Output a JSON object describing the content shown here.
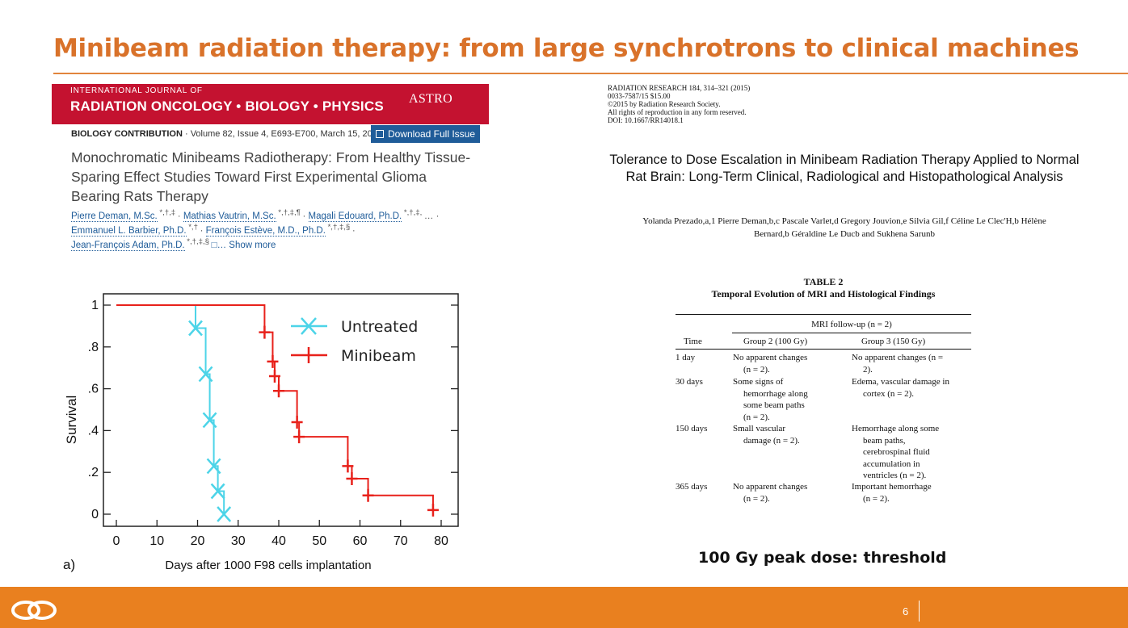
{
  "slide": {
    "title": "Minibeam radiation therapy: from large synchrotrons to clinical machines",
    "page_number": "6",
    "caption": "100 Gy peak dose: threshold",
    "colors": {
      "accent": "#E9801F",
      "title": "#D9722A",
      "journal_red": "#C41230",
      "link_blue": "#1F5C99",
      "untreated": "#4DD4E8",
      "minibeam": "#E8211B"
    }
  },
  "left_paper": {
    "journal_line1": "INTERNATIONAL JOURNAL OF",
    "journal_line2": "RADIATION ONCOLOGY • BIOLOGY • PHYSICS",
    "journal_astro": "ASTRO",
    "contribution_type": "BIOLOGY CONTRIBUTION",
    "contribution_details": " · Volume 82, Issue 4, E693-E700, March 15, 2012",
    "download_label": "Download Full Issue",
    "title": "Monochromatic Minibeams Radiotherapy: From Healthy Tissue-Sparing Effect Studies Toward First Experimental Glioma Bearing Rats Therapy",
    "authors": {
      "a1": "Pierre Deman, M.Sc.",
      "a1_sup": " *,†,‡ ",
      "a2": "Mathias Vautrin, M.Sc.",
      "a2_sup": " *,†,‡,¶ ",
      "a3": "Magali Edouard, Ph.D.",
      "a3_sup": " *,†,‡, ",
      "a3_tail": "… ·",
      "a4": "Emmanuel L. Barbier, Ph.D.",
      "a4_sup": " *,† ",
      "a5": "François Estève, M.D., Ph.D.",
      "a5_sup": " *,†,‡,§ ",
      "a5_tail": "·",
      "a6": "Jean-François Adam, Ph.D.",
      "a6_sup": " *,†,‡,§ ",
      "show_more": "□… Show more",
      "dot": "·"
    }
  },
  "right_paper": {
    "header_line1": "RADIATION RESEARCH 184, 314–321 (2015)",
    "header_line2": "0033-7587/15 $15.00",
    "header_line3": "©2015 by Radiation Research Society.",
    "header_line4": "All rights of reproduction in any form reserved.",
    "header_line5": "DOI: 10.1667/RR14018.1",
    "title": "Tolerance to Dose Escalation in Minibeam Radiation Therapy Applied to Normal Rat Brain: Long-Term Clinical, Radiological and Histopathological Analysis",
    "authors_line1": "Yolanda Prezado,a,1 Pierre Deman,b,c Pascale Varlet,d Gregory Jouvion,e Silvia Gil,f Céline Le Clec'H,b Hélène",
    "authors_line2": "Bernard,b Géraldine Le Ducb and Sukhena Sarunb"
  },
  "table2": {
    "label": "TABLE 2",
    "title": "Temporal Evolution of MRI and Histological Findings",
    "spanner": "MRI follow-up (n = 2)",
    "headers": [
      "Time",
      "Group 2 (100 Gy)",
      "Group 3 (150 Gy)"
    ],
    "rows": [
      {
        "time": "1 day",
        "g2": [
          "No apparent changes",
          "(n = 2)."
        ],
        "g3": [
          "No apparent changes (n =",
          "2)."
        ]
      },
      {
        "time": "30 days",
        "g2": [
          "Some signs of",
          "hemorrhage along",
          "some beam paths",
          "(n = 2)."
        ],
        "g3": [
          "Edema, vascular damage in",
          "cortex (n = 2)."
        ]
      },
      {
        "time": "150 days",
        "g2": [
          "Small vascular",
          "damage (n = 2)."
        ],
        "g3": [
          "Hemorrhage along some",
          "beam paths,",
          "cerebrospinal fluid",
          "accumulation in",
          "ventricles (n = 2)."
        ]
      },
      {
        "time": "365 days",
        "g2": [
          "No apparent changes",
          "(n = 2)."
        ],
        "g3": [
          "Important hemorrhage",
          "(n = 2)."
        ]
      }
    ]
  },
  "chart_data": {
    "type": "line",
    "panel_label": "a)",
    "xlabel": "Days after 1000 F98 cells implantation",
    "ylabel": "Survival",
    "xlim": [
      0,
      80
    ],
    "ylim": [
      0,
      1
    ],
    "x_ticks": [
      0,
      10,
      20,
      30,
      40,
      50,
      60,
      70,
      80
    ],
    "y_ticks": [
      0,
      0.2,
      0.4,
      0.6,
      0.8,
      1
    ],
    "y_tick_labels": [
      "0",
      ".2",
      ".4",
      ".6",
      ".8",
      "1"
    ],
    "legend_position": "top-right",
    "step": true,
    "series": [
      {
        "name": "Untreated",
        "color": "#4DD4E8",
        "marker": "x",
        "steps": [
          [
            0,
            1
          ],
          [
            19.5,
            0.89
          ],
          [
            22,
            0.67
          ],
          [
            23,
            0.45
          ],
          [
            24,
            0.23
          ],
          [
            25,
            0.11
          ],
          [
            26.5,
            0
          ]
        ],
        "markers": [
          [
            19.5,
            0.89
          ],
          [
            22,
            0.67
          ],
          [
            23,
            0.45
          ],
          [
            24,
            0.23
          ],
          [
            25,
            0.11
          ],
          [
            26.5,
            0
          ]
        ]
      },
      {
        "name": "Minibeam",
        "color": "#E8211B",
        "marker": "+",
        "steps": [
          [
            0,
            1
          ],
          [
            36.5,
            0.87
          ],
          [
            38.5,
            0.73
          ],
          [
            39,
            0.66
          ],
          [
            40,
            0.59
          ],
          [
            44.5,
            0.44
          ],
          [
            45,
            0.37
          ],
          [
            57,
            0.23
          ],
          [
            58,
            0.17
          ],
          [
            62,
            0.09
          ],
          [
            78,
            0.02
          ]
        ],
        "markers": [
          [
            36.5,
            0.87
          ],
          [
            38.5,
            0.73
          ],
          [
            39,
            0.66
          ],
          [
            40,
            0.59
          ],
          [
            44.5,
            0.44
          ],
          [
            45,
            0.37
          ],
          [
            57,
            0.23
          ],
          [
            58,
            0.17
          ],
          [
            62,
            0.09
          ],
          [
            78,
            0.02
          ]
        ]
      }
    ]
  }
}
